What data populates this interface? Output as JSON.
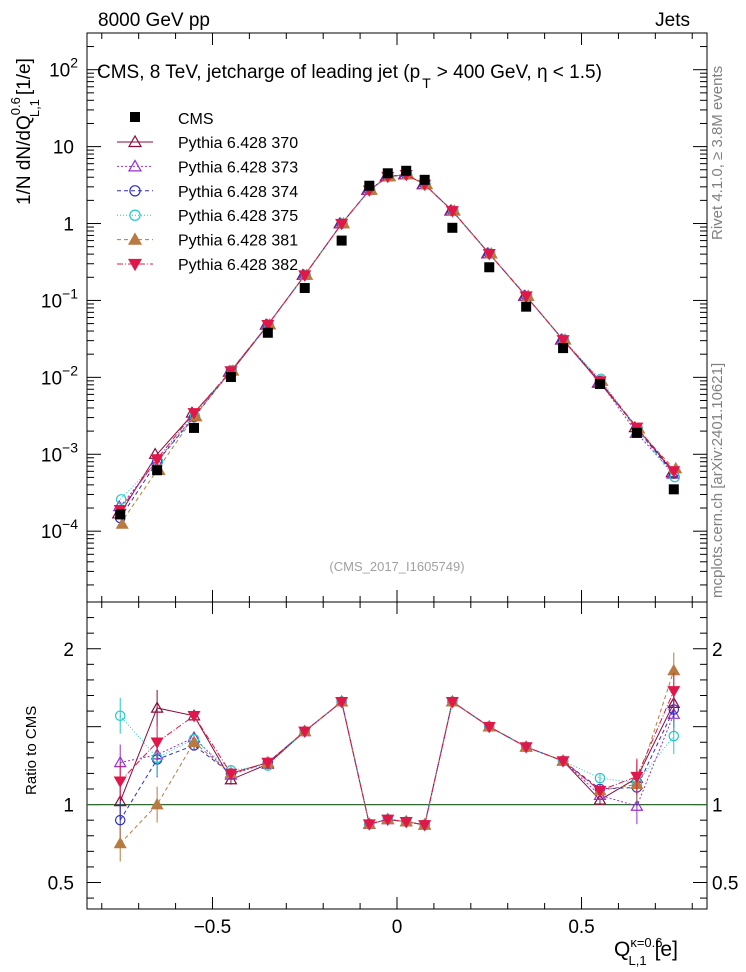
{
  "header": {
    "left": "8000 GeV pp",
    "right": "Jets"
  },
  "side_labels": {
    "rivet": "Rivet 4.1.0, ≥ 3.8M events",
    "mcplots": "mcplots.cern.ch [arXiv:2401.10621]"
  },
  "watermark": "(CMS_2017_I1605749)",
  "chart_data": {
    "type": "scatter",
    "title": "CMS, 8 TeV, jetcharge of leading jet (p_T > 400 GeV, η < 1.5)",
    "title_parts": {
      "a": "CMS, 8 TeV, jetcharge of leading jet (p",
      "sub": "T",
      "b": "> 400 GeV,  η < 1.5)"
    },
    "ylabel": {
      "main": "1/N dN/dQ",
      "sup": "0.6",
      "sub": "L,1",
      "unit": "[1/e]"
    },
    "ratio_ylabel": "Ratio to CMS",
    "xlabel": {
      "main": "Q",
      "sup": "κ=0.6",
      "sub": "L,1",
      "unit": "[e]"
    },
    "xlim": [
      -0.84,
      0.84
    ],
    "ylim": [
      1.2e-05,
      300
    ],
    "ratio_ylim": [
      0.33,
      2.3
    ],
    "x_ticks": [
      -0.5,
      0,
      0.5
    ],
    "x_tick_labels": [
      "−0.5",
      "0",
      "0.5"
    ],
    "y_ticks": [
      {
        "base": "10",
        "exp": "2",
        "value": 100
      },
      {
        "base": "10",
        "exp": "",
        "value": 10
      },
      {
        "base": "1",
        "exp": "",
        "value": 1
      },
      {
        "base": "10",
        "exp": "−1",
        "value": 0.1
      },
      {
        "base": "10",
        "exp": "−2",
        "value": 0.01
      },
      {
        "base": "10",
        "exp": "−3",
        "value": 0.001
      },
      {
        "base": "10",
        "exp": "−4",
        "value": 0.0001
      }
    ],
    "ratio_ticks": [
      {
        "label": "0.5",
        "value": 0.5
      },
      {
        "label": "1",
        "value": 1
      },
      {
        "label": "2",
        "value": 2
      }
    ],
    "x": [
      -0.75,
      -0.65,
      -0.55,
      -0.45,
      -0.35,
      -0.25,
      -0.15,
      -0.075,
      -0.025,
      0.025,
      0.075,
      0.15,
      0.25,
      0.35,
      0.45,
      0.55,
      0.65,
      0.75
    ],
    "data": {
      "name": "CMS",
      "values": [
        0.000165,
        0.00062,
        0.0022,
        0.0101,
        0.038,
        0.145,
        0.6,
        3.1,
        4.5,
        4.85,
        3.7,
        0.88,
        0.27,
        0.083,
        0.024,
        0.0082,
        0.0019,
        0.00035
      ]
    },
    "series": [
      {
        "name": "Pythia 6.428 370",
        "color": "#8b0a3a",
        "marker": "triangle-up-open",
        "dash": "",
        "ratio": [
          1.02,
          1.62,
          1.57,
          1.16,
          1.26,
          1.47,
          1.66,
          0.875,
          0.905,
          0.89,
          0.87,
          1.66,
          1.5,
          1.37,
          1.28,
          1.03,
          1.17,
          1.65
        ]
      },
      {
        "name": "Pythia 6.428 373",
        "color": "#9b30c8",
        "marker": "triangle-up-open",
        "dash": "2,2",
        "ratio": [
          1.27,
          1.32,
          1.43,
          1.19,
          1.27,
          1.47,
          1.66,
          0.875,
          0.905,
          0.89,
          0.87,
          1.66,
          1.5,
          1.37,
          1.28,
          1.06,
          0.99,
          1.58
        ]
      },
      {
        "name": "Pythia 6.428 374",
        "color": "#2e2ec8",
        "marker": "circle-open",
        "dash": "4,3",
        "ratio": [
          0.9,
          1.29,
          1.38,
          1.2,
          1.27,
          1.47,
          1.66,
          0.875,
          0.905,
          0.89,
          0.87,
          1.66,
          1.5,
          1.37,
          1.28,
          1.1,
          1.11,
          1.61
        ]
      },
      {
        "name": "Pythia 6.428 375",
        "color": "#20c8c8",
        "marker": "circle-open",
        "dash": "1,2",
        "ratio": [
          1.57,
          1.3,
          1.42,
          1.22,
          1.25,
          1.47,
          1.66,
          0.875,
          0.905,
          0.89,
          0.87,
          1.66,
          1.5,
          1.37,
          1.28,
          1.17,
          1.14,
          1.44
        ]
      },
      {
        "name": "Pythia 6.428 381",
        "color": "#b87a40",
        "marker": "triangle-up-filled",
        "dash": "4,3",
        "ratio": [
          0.75,
          1.0,
          1.4,
          1.2,
          1.27,
          1.47,
          1.66,
          0.875,
          0.905,
          0.89,
          0.87,
          1.66,
          1.5,
          1.37,
          1.28,
          1.09,
          1.13,
          1.86
        ]
      },
      {
        "name": "Pythia 6.428 382",
        "color": "#e0184a",
        "marker": "triangle-down-filled",
        "dash": "6,2,1,2",
        "ratio": [
          1.15,
          1.4,
          1.57,
          1.2,
          1.27,
          1.47,
          1.66,
          0.875,
          0.905,
          0.89,
          0.87,
          1.66,
          1.5,
          1.37,
          1.28,
          1.09,
          1.18,
          1.73
        ]
      }
    ]
  }
}
